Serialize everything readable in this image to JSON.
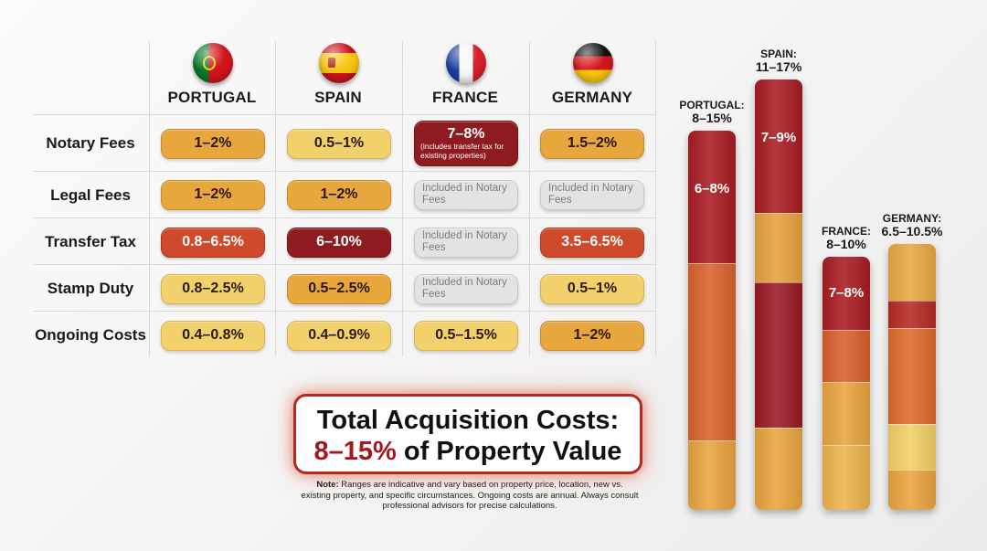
{
  "table": {
    "countries": [
      "PORTUGAL",
      "SPAIN",
      "FRANCE",
      "GERMANY"
    ],
    "flags": [
      "portugal-flag-icon",
      "spain-flag-icon",
      "france-flag-icon",
      "germany-flag-icon"
    ],
    "rows": [
      {
        "label": "Notary Fees",
        "cells": [
          {
            "text": "1–2%",
            "tone": "mid"
          },
          {
            "text": "0.5–1%",
            "tone": "light"
          },
          {
            "text": "7–8%",
            "note": "(includes transfer tax for existing properties)",
            "tone": "dark"
          },
          {
            "text": "1.5–2%",
            "tone": "mid"
          }
        ]
      },
      {
        "label": "Legal Fees",
        "cells": [
          {
            "text": "1–2%",
            "tone": "mid"
          },
          {
            "text": "1–2%",
            "tone": "mid"
          },
          {
            "text": "Included in Notary Fees",
            "tone": "grey"
          },
          {
            "text": "Included in Notary Fees",
            "tone": "grey"
          }
        ]
      },
      {
        "label": "Transfer Tax",
        "cells": [
          {
            "text": "0.8–6.5%",
            "tone": "red"
          },
          {
            "text": "6–10%",
            "tone": "dark"
          },
          {
            "text": "Included in Notary Fees",
            "tone": "grey"
          },
          {
            "text": "3.5–6.5%",
            "tone": "red"
          }
        ]
      },
      {
        "label": "Stamp Duty",
        "cells": [
          {
            "text": "0.8–2.5%",
            "tone": "light"
          },
          {
            "text": "0.5–2.5%",
            "tone": "mid"
          },
          {
            "text": "Included in Notary Fees",
            "tone": "grey"
          },
          {
            "text": "0.5–1%",
            "tone": "light"
          }
        ]
      },
      {
        "label": "Ongoing Costs",
        "cells": [
          {
            "text": "0.4–0.8%",
            "tone": "light"
          },
          {
            "text": "0.4–0.9%",
            "tone": "light"
          },
          {
            "text": "0.5–1.5%",
            "tone": "light"
          },
          {
            "text": "1–2%",
            "tone": "mid"
          }
        ]
      }
    ]
  },
  "chart_data": {
    "type": "bar",
    "categories": [
      "PORTUGAL",
      "SPAIN",
      "FRANCE",
      "GERMANY"
    ],
    "range_labels": [
      "8–15%",
      "11–17%",
      "8–10%",
      "6.5–10.5%"
    ],
    "max_values": [
      15,
      17,
      10,
      10.5
    ],
    "ylim": [
      0,
      17
    ],
    "stacks": [
      [
        {
          "value": 5.25,
          "color": "#a81c22",
          "label": "6–8%"
        },
        {
          "value": 7.0,
          "color": "#d9622b"
        },
        {
          "value": 2.75,
          "color": "#e9a43f"
        }
      ],
      [
        {
          "value": 5.25,
          "color": "#a81c22",
          "label": "7–9%"
        },
        {
          "value": 2.75,
          "color": "#e6a23f"
        },
        {
          "value": 5.75,
          "color": "#9a1a23"
        },
        {
          "value": 3.25,
          "color": "#e9a43f"
        }
      ],
      [
        {
          "value": 2.9,
          "color": "#a81c22",
          "label": "7–8%"
        },
        {
          "value": 2.05,
          "color": "#d9602c"
        },
        {
          "value": 2.5,
          "color": "#e9a43f"
        },
        {
          "value": 2.55,
          "color": "#edb34c"
        }
      ],
      [
        {
          "value": 2.25,
          "color": "#e9a843"
        },
        {
          "value": 1.05,
          "color": "#b52a24"
        },
        {
          "value": 3.8,
          "color": "#de6a2d"
        },
        {
          "value": 1.8,
          "color": "#f2cf66"
        },
        {
          "value": 1.6,
          "color": "#e9a43f"
        }
      ]
    ]
  },
  "total": {
    "line1": "Total Acquisition Costs:",
    "highlight": "8–15%",
    "line2_rest": " of Property Value"
  },
  "note": {
    "bold": "Note:",
    "text": " Ranges are indicative and vary based on property price, location, new vs. existing property, and specific circumstances. Ongoing costs are annual. Always consult professional advisors for precise calculations."
  }
}
